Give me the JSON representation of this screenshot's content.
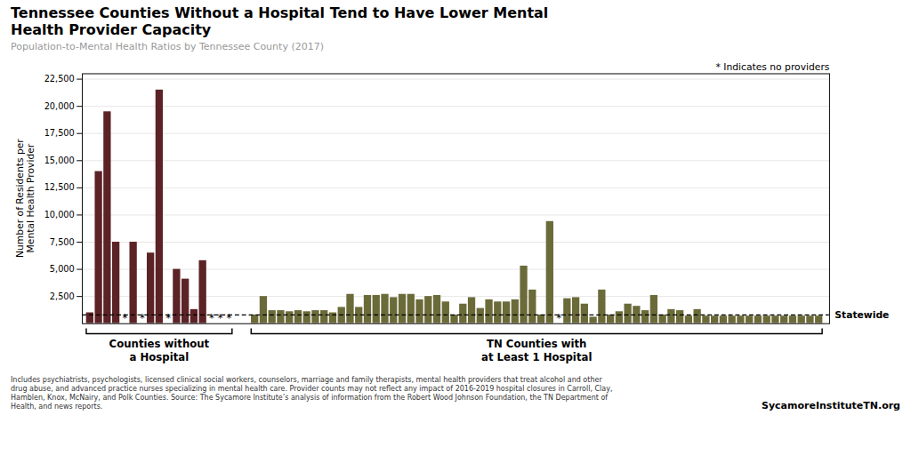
{
  "chart_data": {
    "type": "bar",
    "title": "Tennessee Counties Without a Hospital Tend to Have Lower Mental\nHealth Provider Capacity",
    "subtitle": "Population-to-Mental  Health  Ratios  by  Tennessee  County  (2017)",
    "ylabel": "Number of Residents per\nMental Health Provider",
    "note": "* Indicates no providers",
    "star_text": "*",
    "footnote": "Includes psychiatrists, psychologists, licensed clinical social workers, counselors, marriage and family therapists, mental health providers that treat alcohol and other\ndrug abuse, and advanced practice nurses specializing in mental health care. Provider counts may not reflect any impact of 2016-2019 hospital closures in Carroll, Clay,\nHamblen, Knox, McNairy, and Polk Counties. Source: The Sycamore Institute’s analysis of information from the Robert Wood Johnson Foundation, the TN Department of\nHealth, and news reports.",
    "brand": "SycamoreInstituteTN.org",
    "reference_line": {
      "label": "Statewide",
      "value": 800,
      "line_style": "dashed"
    },
    "series": [
      {
        "name": "Counties without\na Hospital",
        "color": "#5C2326",
        "values": [
          1000,
          14000,
          19500,
          7500,
          0,
          7500,
          0,
          6500,
          21500,
          0,
          5000,
          4100,
          1300,
          5800,
          0,
          0,
          0
        ],
        "stars": [
          0,
          0,
          0,
          0,
          1,
          0,
          1,
          0,
          0,
          1,
          0,
          0,
          0,
          0,
          1,
          1,
          1
        ]
      },
      {
        "name": "TN Counties with\nat Least 1 Hospital",
        "color": "#6B6B3A",
        "values": [
          800,
          2500,
          1200,
          1200,
          1100,
          1200,
          1100,
          1200,
          1200,
          1000,
          1500,
          2700,
          1500,
          2600,
          2600,
          2700,
          2400,
          2700,
          2700,
          2200,
          2500,
          2600,
          2000,
          800,
          1800,
          2400,
          1400,
          2200,
          2000,
          2000,
          2200,
          5300,
          3100,
          800,
          9400,
          0,
          2300,
          2400,
          1800,
          600,
          3100,
          800,
          1100,
          1800,
          1600,
          1200,
          2600,
          800,
          1300,
          1200,
          700,
          1300,
          700,
          700,
          700,
          700,
          700,
          700,
          700,
          700,
          700,
          700,
          700,
          700,
          700,
          700
        ],
        "stars": [
          0,
          0,
          0,
          0,
          0,
          0,
          0,
          0,
          0,
          0,
          0,
          0,
          0,
          0,
          0,
          0,
          0,
          0,
          0,
          0,
          0,
          0,
          0,
          0,
          0,
          0,
          0,
          0,
          0,
          0,
          0,
          0,
          0,
          0,
          0,
          1,
          0,
          0,
          0,
          0,
          0,
          0,
          0,
          0,
          0,
          0,
          0,
          0,
          0,
          0,
          0,
          0,
          0,
          0,
          0,
          0,
          0,
          0,
          0,
          0,
          0,
          0,
          0,
          0,
          0,
          0
        ]
      }
    ],
    "ylim": [
      0,
      23000
    ],
    "yticks": [
      {
        "value": 2500,
        "label": "2,500"
      },
      {
        "value": 5000,
        "label": "5,000"
      },
      {
        "value": 7500,
        "label": "7,500"
      },
      {
        "value": 10000,
        "label": "10,000"
      },
      {
        "value": 12500,
        "label": "12,500"
      },
      {
        "value": 15000,
        "label": "15,000"
      },
      {
        "value": 17500,
        "label": "17,500"
      },
      {
        "value": 20000,
        "label": "20,000"
      },
      {
        "value": 22500,
        "label": "22,500"
      }
    ],
    "grid": true
  }
}
